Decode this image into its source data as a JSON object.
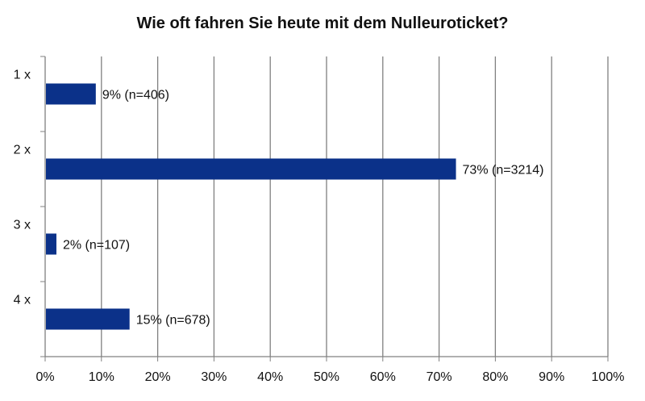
{
  "chart_data": {
    "type": "bar",
    "orientation": "horizontal",
    "title": "Wie oft fahren Sie heute mit dem Nulleuroticket?",
    "categories": [
      "1 x",
      "2 x",
      "3 x",
      "4 x"
    ],
    "values": [
      9,
      73,
      2,
      15
    ],
    "data_labels": [
      "9% (n=406)",
      "73% (n=3214)",
      "2% (n=107)",
      "15% (n=678)"
    ],
    "xlim": [
      0,
      100
    ],
    "x_ticks": [
      "0%",
      "10%",
      "20%",
      "30%",
      "40%",
      "50%",
      "60%",
      "70%",
      "80%",
      "90%",
      "100%"
    ],
    "grid": "vertical",
    "legend": "none",
    "colors": {
      "bar": "#0b3189",
      "grid": "#808080",
      "axis": "#808080"
    }
  }
}
